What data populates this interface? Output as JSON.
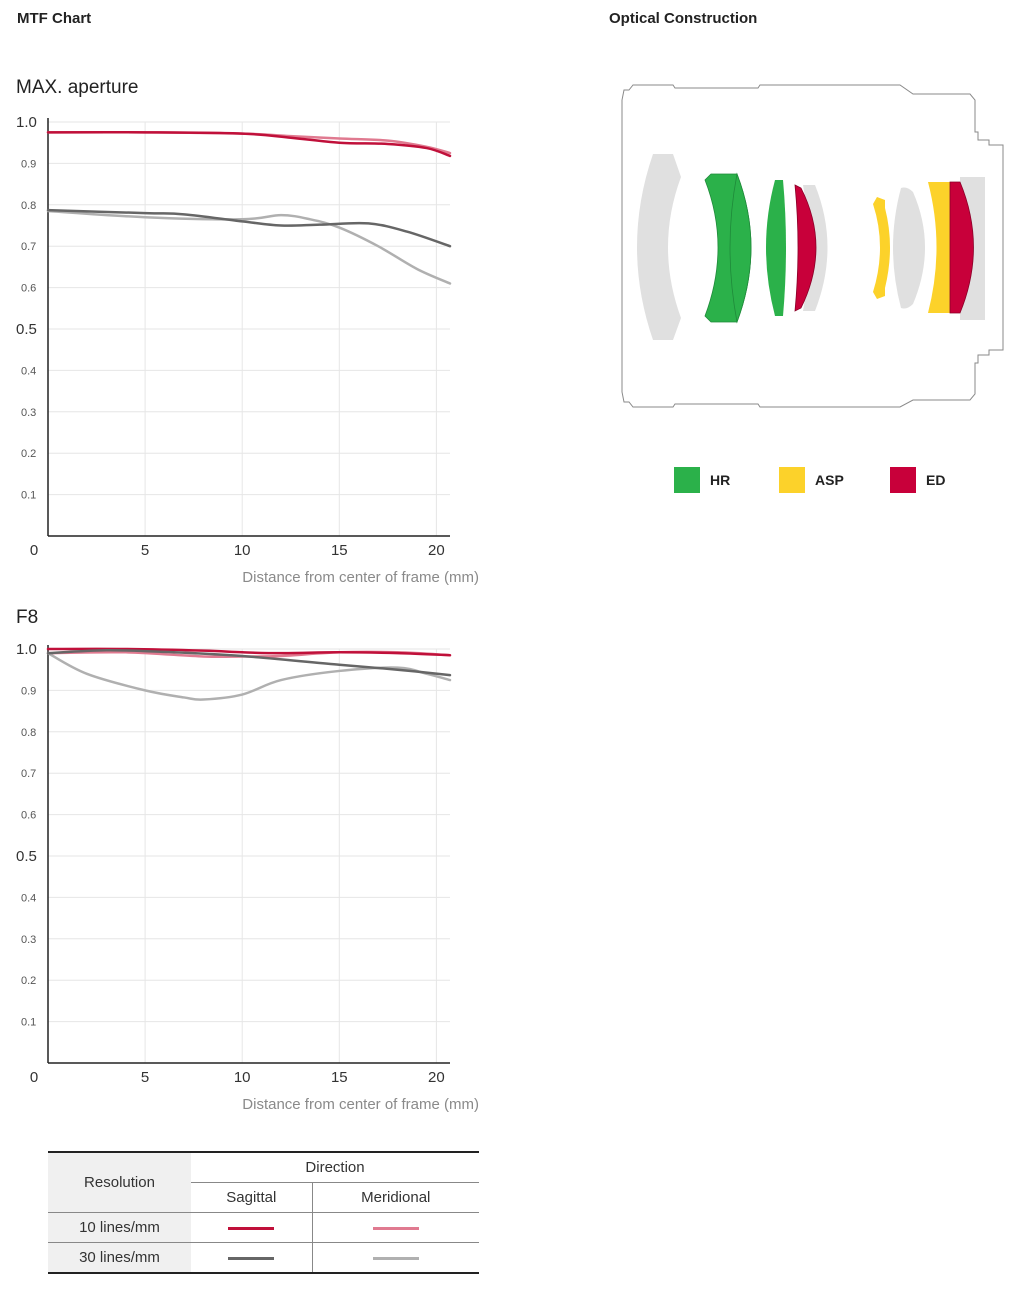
{
  "mtf_title": "MTF Chart",
  "optical_title": "Optical Construction",
  "colors": {
    "sagittal_10": "#c0103a",
    "meridional_10": "#e07a90",
    "sagittal_30": "#666666",
    "meridional_30": "#b0b0b0",
    "hr": "#2bb14a",
    "asp": "#fcd22a",
    "ed": "#c8003a",
    "plain_element": "#e0e0e0"
  },
  "optical_legend": [
    {
      "label": "HR",
      "color": "#2bb14a"
    },
    {
      "label": "ASP",
      "color": "#fcd22a"
    },
    {
      "label": "ED",
      "color": "#c8003a"
    }
  ],
  "chart_data": [
    {
      "type": "line",
      "title": "MAX. aperture",
      "xlabel": "Distance from center of frame (mm)",
      "ylabel": "",
      "xlim": [
        0,
        20.7
      ],
      "ylim": [
        0,
        1.0
      ],
      "xticks": [
        "0",
        "5",
        "10",
        "15",
        "20"
      ],
      "yticks": [
        "0.1",
        "0.2",
        "0.3",
        "0.4",
        "0.5",
        "0.6",
        "0.7",
        "0.8",
        "0.9",
        "1.0"
      ],
      "grid": true,
      "series": [
        {
          "name": "10 lines/mm Meridional",
          "x": [
            0,
            5,
            10,
            12.5,
            15,
            17.5,
            19.5,
            20.7
          ],
          "y": [
            0.975,
            0.975,
            0.972,
            0.966,
            0.96,
            0.955,
            0.94,
            0.925
          ]
        },
        {
          "name": "10 lines/mm Sagittal",
          "x": [
            0,
            5,
            10,
            12.5,
            15,
            17.5,
            19.5,
            20.7
          ],
          "y": [
            0.975,
            0.975,
            0.972,
            0.962,
            0.95,
            0.947,
            0.937,
            0.918
          ]
        },
        {
          "name": "30 lines/mm Meridional",
          "x": [
            0,
            5,
            10,
            12,
            13.5,
            15,
            17,
            19,
            20.7
          ],
          "y": [
            0.785,
            0.77,
            0.765,
            0.775,
            0.765,
            0.745,
            0.7,
            0.645,
            0.61
          ]
        },
        {
          "name": "30 lines/mm Sagittal",
          "x": [
            0,
            5,
            7,
            10,
            12,
            14,
            16.5,
            18.5,
            20.7
          ],
          "y": [
            0.787,
            0.78,
            0.777,
            0.76,
            0.75,
            0.752,
            0.755,
            0.735,
            0.7
          ]
        }
      ]
    },
    {
      "type": "line",
      "title": "F8",
      "xlabel": "Distance from center of frame (mm)",
      "ylabel": "",
      "xlim": [
        0,
        20.7
      ],
      "ylim": [
        0,
        1.0
      ],
      "xticks": [
        "0",
        "5",
        "10",
        "15",
        "20"
      ],
      "yticks": [
        "0.1",
        "0.2",
        "0.3",
        "0.4",
        "0.5",
        "0.6",
        "0.7",
        "0.8",
        "0.9",
        "1.0"
      ],
      "grid": true,
      "series": [
        {
          "name": "10 lines/mm Meridional",
          "x": [
            0,
            4,
            8,
            10,
            12,
            15,
            18,
            20.7
          ],
          "y": [
            0.99,
            0.992,
            0.982,
            0.982,
            0.983,
            0.992,
            0.992,
            0.985
          ]
        },
        {
          "name": "10 lines/mm Sagittal",
          "x": [
            0,
            4,
            8,
            10,
            12,
            15,
            18,
            20.7
          ],
          "y": [
            1.0,
            1.0,
            0.996,
            0.992,
            0.99,
            0.992,
            0.99,
            0.985
          ]
        },
        {
          "name": "30 lines/mm Meridional",
          "x": [
            0,
            2,
            5,
            7,
            8,
            10,
            12,
            15,
            18,
            19.5,
            20.7
          ],
          "y": [
            0.99,
            0.94,
            0.9,
            0.883,
            0.878,
            0.89,
            0.925,
            0.947,
            0.955,
            0.94,
            0.925
          ]
        },
        {
          "name": "30 lines/mm Sagittal",
          "x": [
            0,
            3,
            6,
            10,
            15,
            18,
            20.7
          ],
          "y": [
            0.99,
            0.997,
            0.993,
            0.983,
            0.962,
            0.95,
            0.937
          ]
        }
      ]
    }
  ],
  "legend_table": {
    "resolution_header": "Resolution",
    "direction_header": "Direction",
    "sagittal_header": "Sagittal",
    "meridional_header": "Meridional",
    "rows": [
      {
        "label": "10 lines/mm"
      },
      {
        "label": "30 lines/mm"
      }
    ]
  }
}
